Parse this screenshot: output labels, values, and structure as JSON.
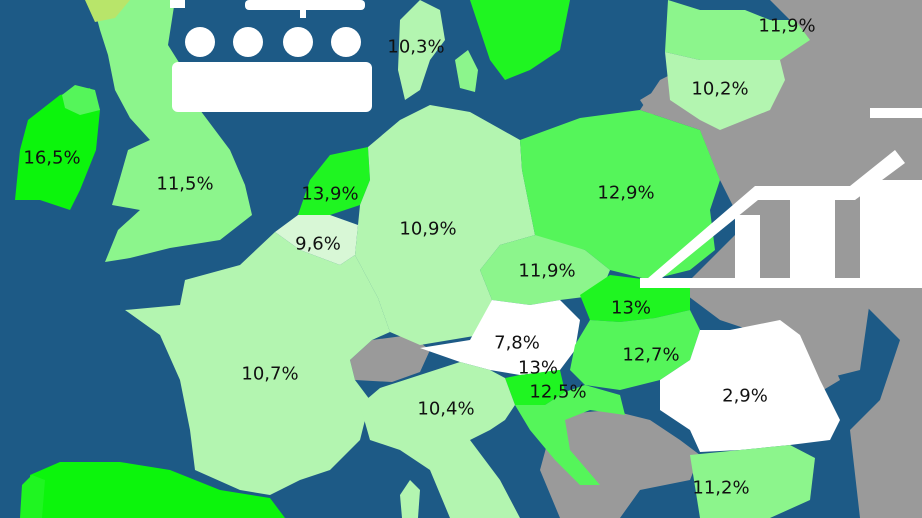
{
  "colors": {
    "sea": "#1d5a86",
    "no_data": "#9a9a9a",
    "white": "#ffffff",
    "pale": "#b3f5b0",
    "light": "#8cf58c",
    "medium": "#55f55a",
    "strong": "#1ff521",
    "vivid": "#0cf50c"
  },
  "regions": [
    {
      "id": "ireland",
      "value": "16,5%"
    },
    {
      "id": "united-kingdom",
      "value": "11,5%"
    },
    {
      "id": "netherlands",
      "value": "13,9%"
    },
    {
      "id": "belgium",
      "value": "9,6%"
    },
    {
      "id": "germany",
      "value": "10,9%"
    },
    {
      "id": "denmark",
      "value": "10,3%"
    },
    {
      "id": "poland",
      "value": "12,9%"
    },
    {
      "id": "lithuania",
      "value": "11,9%"
    },
    {
      "id": "latvia",
      "value": "10,2%"
    },
    {
      "id": "czechia",
      "value": "11,9%"
    },
    {
      "id": "slovakia",
      "value": "13%"
    },
    {
      "id": "austria",
      "value": "7,8%"
    },
    {
      "id": "hungary",
      "value": "12,7%"
    },
    {
      "id": "slovenia",
      "value": "13%"
    },
    {
      "id": "croatia",
      "value": "12,5%"
    },
    {
      "id": "france",
      "value": "10,7%"
    },
    {
      "id": "italy",
      "value": "10,4%"
    },
    {
      "id": "romania",
      "value": "2,9%"
    },
    {
      "id": "bulgaria",
      "value": "11,2%"
    }
  ],
  "icons": [
    "people-group-icon",
    "rising-bar-chart-icon"
  ]
}
